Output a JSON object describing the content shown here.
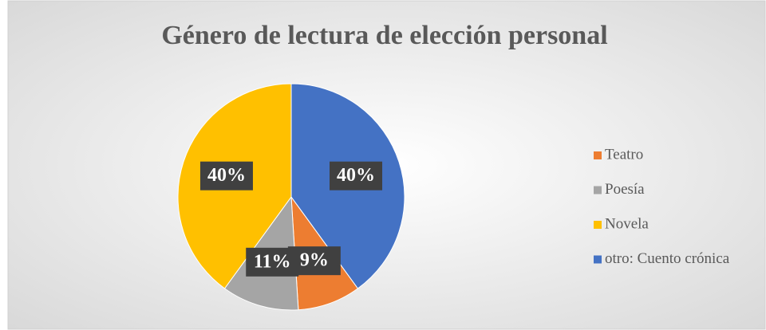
{
  "chart_data": {
    "type": "pie",
    "title": "Género de lectura de elección personal",
    "categories": [
      "Teatro",
      "Poesía",
      "Novela",
      "otro: Cuento crónica"
    ],
    "values": [
      9,
      11,
      40,
      40
    ],
    "value_labels": [
      "9%",
      "11%",
      "40%",
      "40%"
    ],
    "colors": [
      "#ed7d31",
      "#a5a5a5",
      "#ffc000",
      "#4472c4"
    ],
    "legend": "right"
  }
}
